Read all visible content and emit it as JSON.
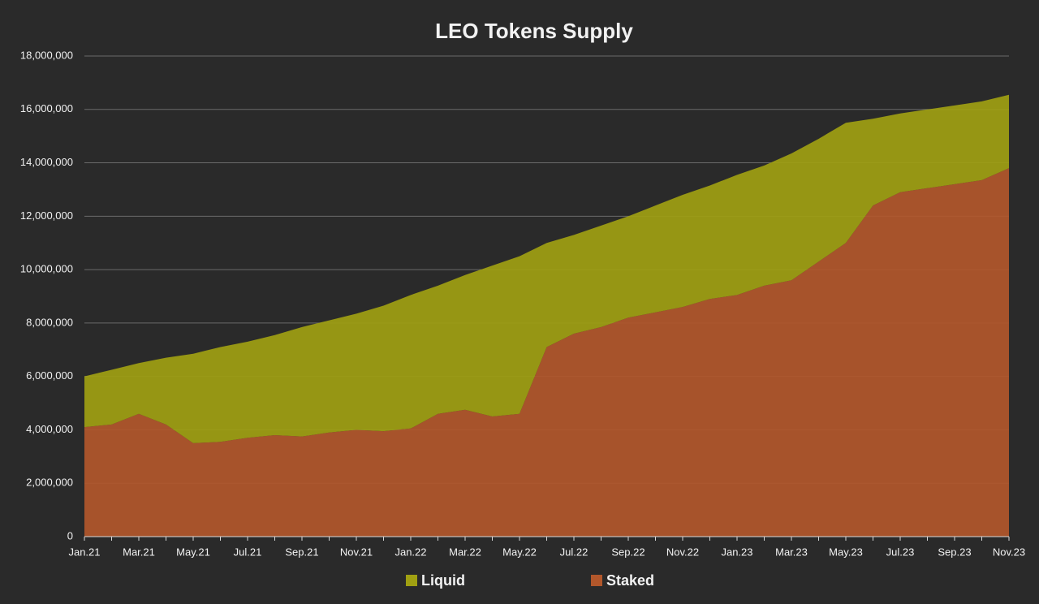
{
  "chart_data": {
    "type": "stacked-area",
    "title": "LEO Tokens Supply",
    "categories": [
      "Jan.21",
      null,
      "Mar.21",
      null,
      "May.21",
      null,
      "Jul.21",
      null,
      "Sep.21",
      null,
      "Nov.21",
      null,
      "Jan.22",
      null,
      "Mar.22",
      null,
      "May.22",
      null,
      "Jul.22",
      null,
      "Sep.22",
      null,
      "Nov.22",
      null,
      "Jan.23",
      null,
      "Mar.23",
      null,
      "May.23",
      null,
      "Jul.23",
      null,
      "Sep.23",
      null,
      "Nov.23"
    ],
    "series": [
      {
        "name": "Liquid",
        "color": "#a0a012",
        "values": [
          1900000,
          2050000,
          1900000,
          2500000,
          3350000,
          3550000,
          3600000,
          3750000,
          4100000,
          4200000,
          4350000,
          4700000,
          5000000,
          4800000,
          5050000,
          5650000,
          5900000,
          3900000,
          3700000,
          3800000,
          3800000,
          4000000,
          4200000,
          4250000,
          4500000,
          4500000,
          4750000,
          4600000,
          4500000,
          3250000,
          2950000,
          2950000,
          2950000,
          2950000,
          2750000
        ]
      },
      {
        "name": "Staked",
        "color": "#b2572b",
        "values": [
          4100000,
          4200000,
          4600000,
          4200000,
          3500000,
          3550000,
          3700000,
          3800000,
          3750000,
          3900000,
          4000000,
          3950000,
          4050000,
          4600000,
          4750000,
          4500000,
          4600000,
          7100000,
          7600000,
          7850000,
          8200000,
          8400000,
          8600000,
          8900000,
          9050000,
          9400000,
          9600000,
          10300000,
          11000000,
          12400000,
          12900000,
          13050000,
          13200000,
          13350000,
          13800000
        ]
      }
    ],
    "ylim": [
      0,
      18000000
    ],
    "yticks": [
      0,
      {
        "value": 2000000,
        "label": "2,000,000"
      },
      {
        "value": 4000000,
        "label": "4,000,000"
      },
      {
        "value": 6000000,
        "label": "6,000,000"
      },
      {
        "value": 8000000,
        "label": "8,000,000"
      },
      {
        "value": 10000000,
        "label": "10,000,000"
      },
      {
        "value": 12000000,
        "label": "12,000,000"
      },
      {
        "value": 14000000,
        "label": "14,000,000"
      },
      {
        "value": 16000000,
        "label": "16,000,000"
      },
      {
        "value": 18000000,
        "label": "18,000,000"
      }
    ],
    "grid": true
  }
}
